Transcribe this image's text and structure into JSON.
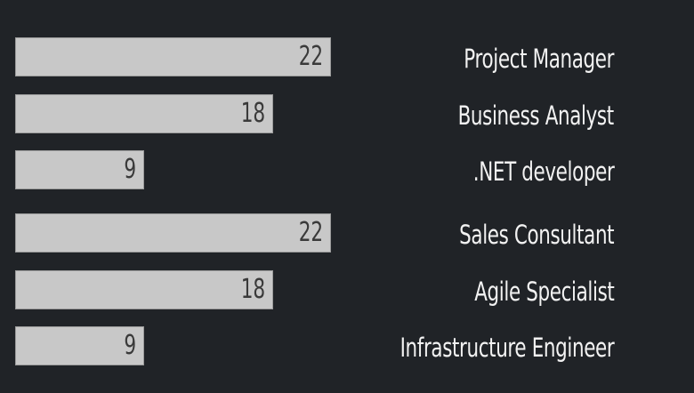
{
  "chart_data": {
    "type": "bar",
    "orientation": "horizontal",
    "categories": [
      "Project Manager",
      "Business Analyst",
      ".NET developer",
      "Sales Consultant",
      "Agile Specialist",
      "Infrastructure Engineer"
    ],
    "values": [
      22,
      18,
      9,
      22,
      18,
      9
    ],
    "title": "",
    "xlabel": "",
    "ylabel": "",
    "xlim": [
      0,
      22
    ],
    "grid": false,
    "legend": "none",
    "category_label_position": "right",
    "value_label_position": "inside-end"
  },
  "colors": {
    "background": "#202327",
    "bar_fill": "#c8c8c8",
    "bar_border": "#9a9a9a",
    "value_text": "#3a3a3a",
    "label_text": "#f2f2f2"
  }
}
